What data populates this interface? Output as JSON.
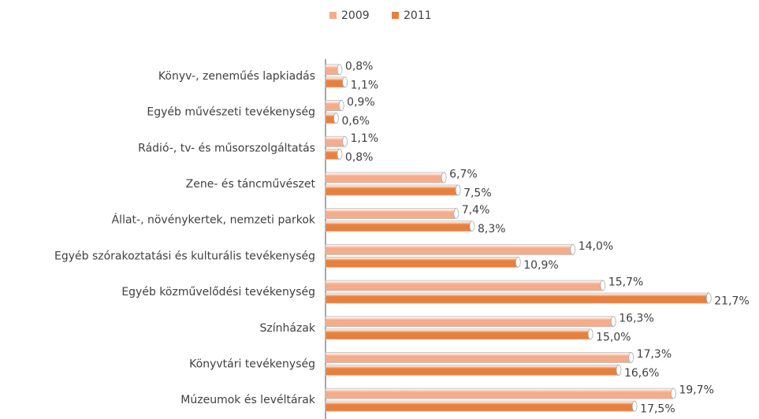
{
  "chart_data": {
    "type": "barh",
    "categories": [
      "Könyv-, zeneműés lapkiadás",
      "Egyéb művészeti tevékenység",
      "Rádió-, tv- és műsorszolgáltatás",
      "Zene- és táncművészet",
      "Állat-, növénykertek, nemzeti parkok",
      "Egyéb szórakoztatási és kulturális tevékenység",
      "Egyéb közművelődési tevékenység",
      "Színházak",
      "Könyvtári tevékenység",
      "Múzeumok és levéltárak"
    ],
    "series": [
      {
        "name": "2009",
        "color": "#f5ac8a",
        "values": [
          0.8,
          0.9,
          1.1,
          6.7,
          7.4,
          14.0,
          15.7,
          16.3,
          17.3,
          19.7
        ],
        "value_labels": [
          "0,8%",
          "0,9%",
          "1,1%",
          "6,7%",
          "7,4%",
          "14,0%",
          "15,7%",
          "16,3%",
          "17,3%",
          "19,7%"
        ]
      },
      {
        "name": "2011",
        "color": "#e8803d",
        "values": [
          1.1,
          0.6,
          0.8,
          7.5,
          8.3,
          10.9,
          21.7,
          15.0,
          16.6,
          17.5
        ],
        "value_labels": [
          "1,1%",
          "0,6%",
          "0,8%",
          "7,5%",
          "8,3%",
          "10,9%",
          "21,7%",
          "15,0%",
          "16,6%",
          "17,5%"
        ]
      }
    ],
    "xlim": [
      0,
      22
    ],
    "legend": "top"
  }
}
